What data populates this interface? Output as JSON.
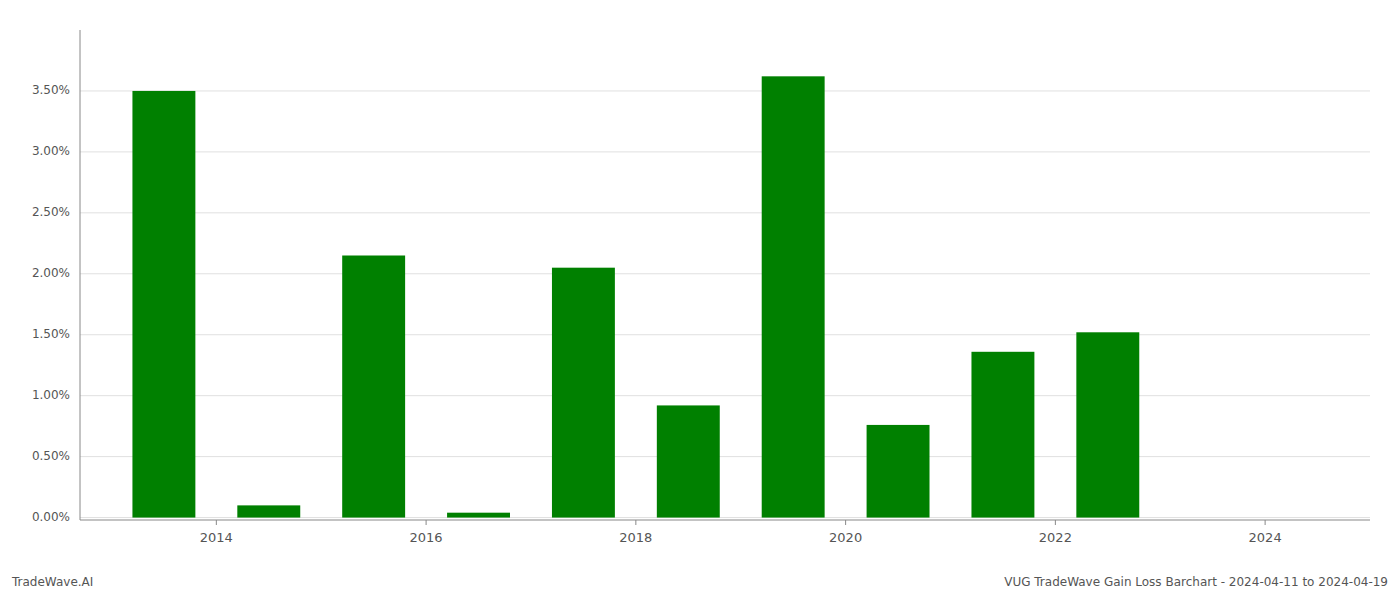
{
  "chart_data": {
    "type": "bar",
    "x": [
      2013,
      2014,
      2015,
      2016,
      2017,
      2018,
      2019,
      2020,
      2021,
      2022,
      2023
    ],
    "values": [
      3.5,
      0.1,
      2.15,
      0.04,
      2.05,
      0.92,
      3.62,
      0.76,
      1.36,
      1.52,
      0.0
    ],
    "color": "#008000",
    "xlim": [
      2012.2,
      2024.5
    ],
    "xticks": [
      {
        "value": 2013.5,
        "label": "2014"
      },
      {
        "value": 2015.5,
        "label": "2016"
      },
      {
        "value": 2017.5,
        "label": "2018"
      },
      {
        "value": 2019.5,
        "label": "2020"
      },
      {
        "value": 2021.5,
        "label": "2022"
      },
      {
        "value": 2023.5,
        "label": "2024"
      }
    ],
    "ylim": [
      -0.02,
      4.0
    ],
    "yticks": [
      {
        "value": 0.0,
        "label": "0.00%"
      },
      {
        "value": 0.5,
        "label": "0.50%"
      },
      {
        "value": 1.0,
        "label": "1.00%"
      },
      {
        "value": 1.5,
        "label": "1.50%"
      },
      {
        "value": 2.0,
        "label": "2.00%"
      },
      {
        "value": 2.5,
        "label": "2.50%"
      },
      {
        "value": 3.0,
        "label": "3.00%"
      },
      {
        "value": 3.5,
        "label": "3.50%"
      }
    ],
    "grid": true,
    "annotations": [
      "TradeWave.AI",
      "VUG TradeWave Gain Loss Barchart - 2024-04-11 to 2024-04-19"
    ]
  }
}
